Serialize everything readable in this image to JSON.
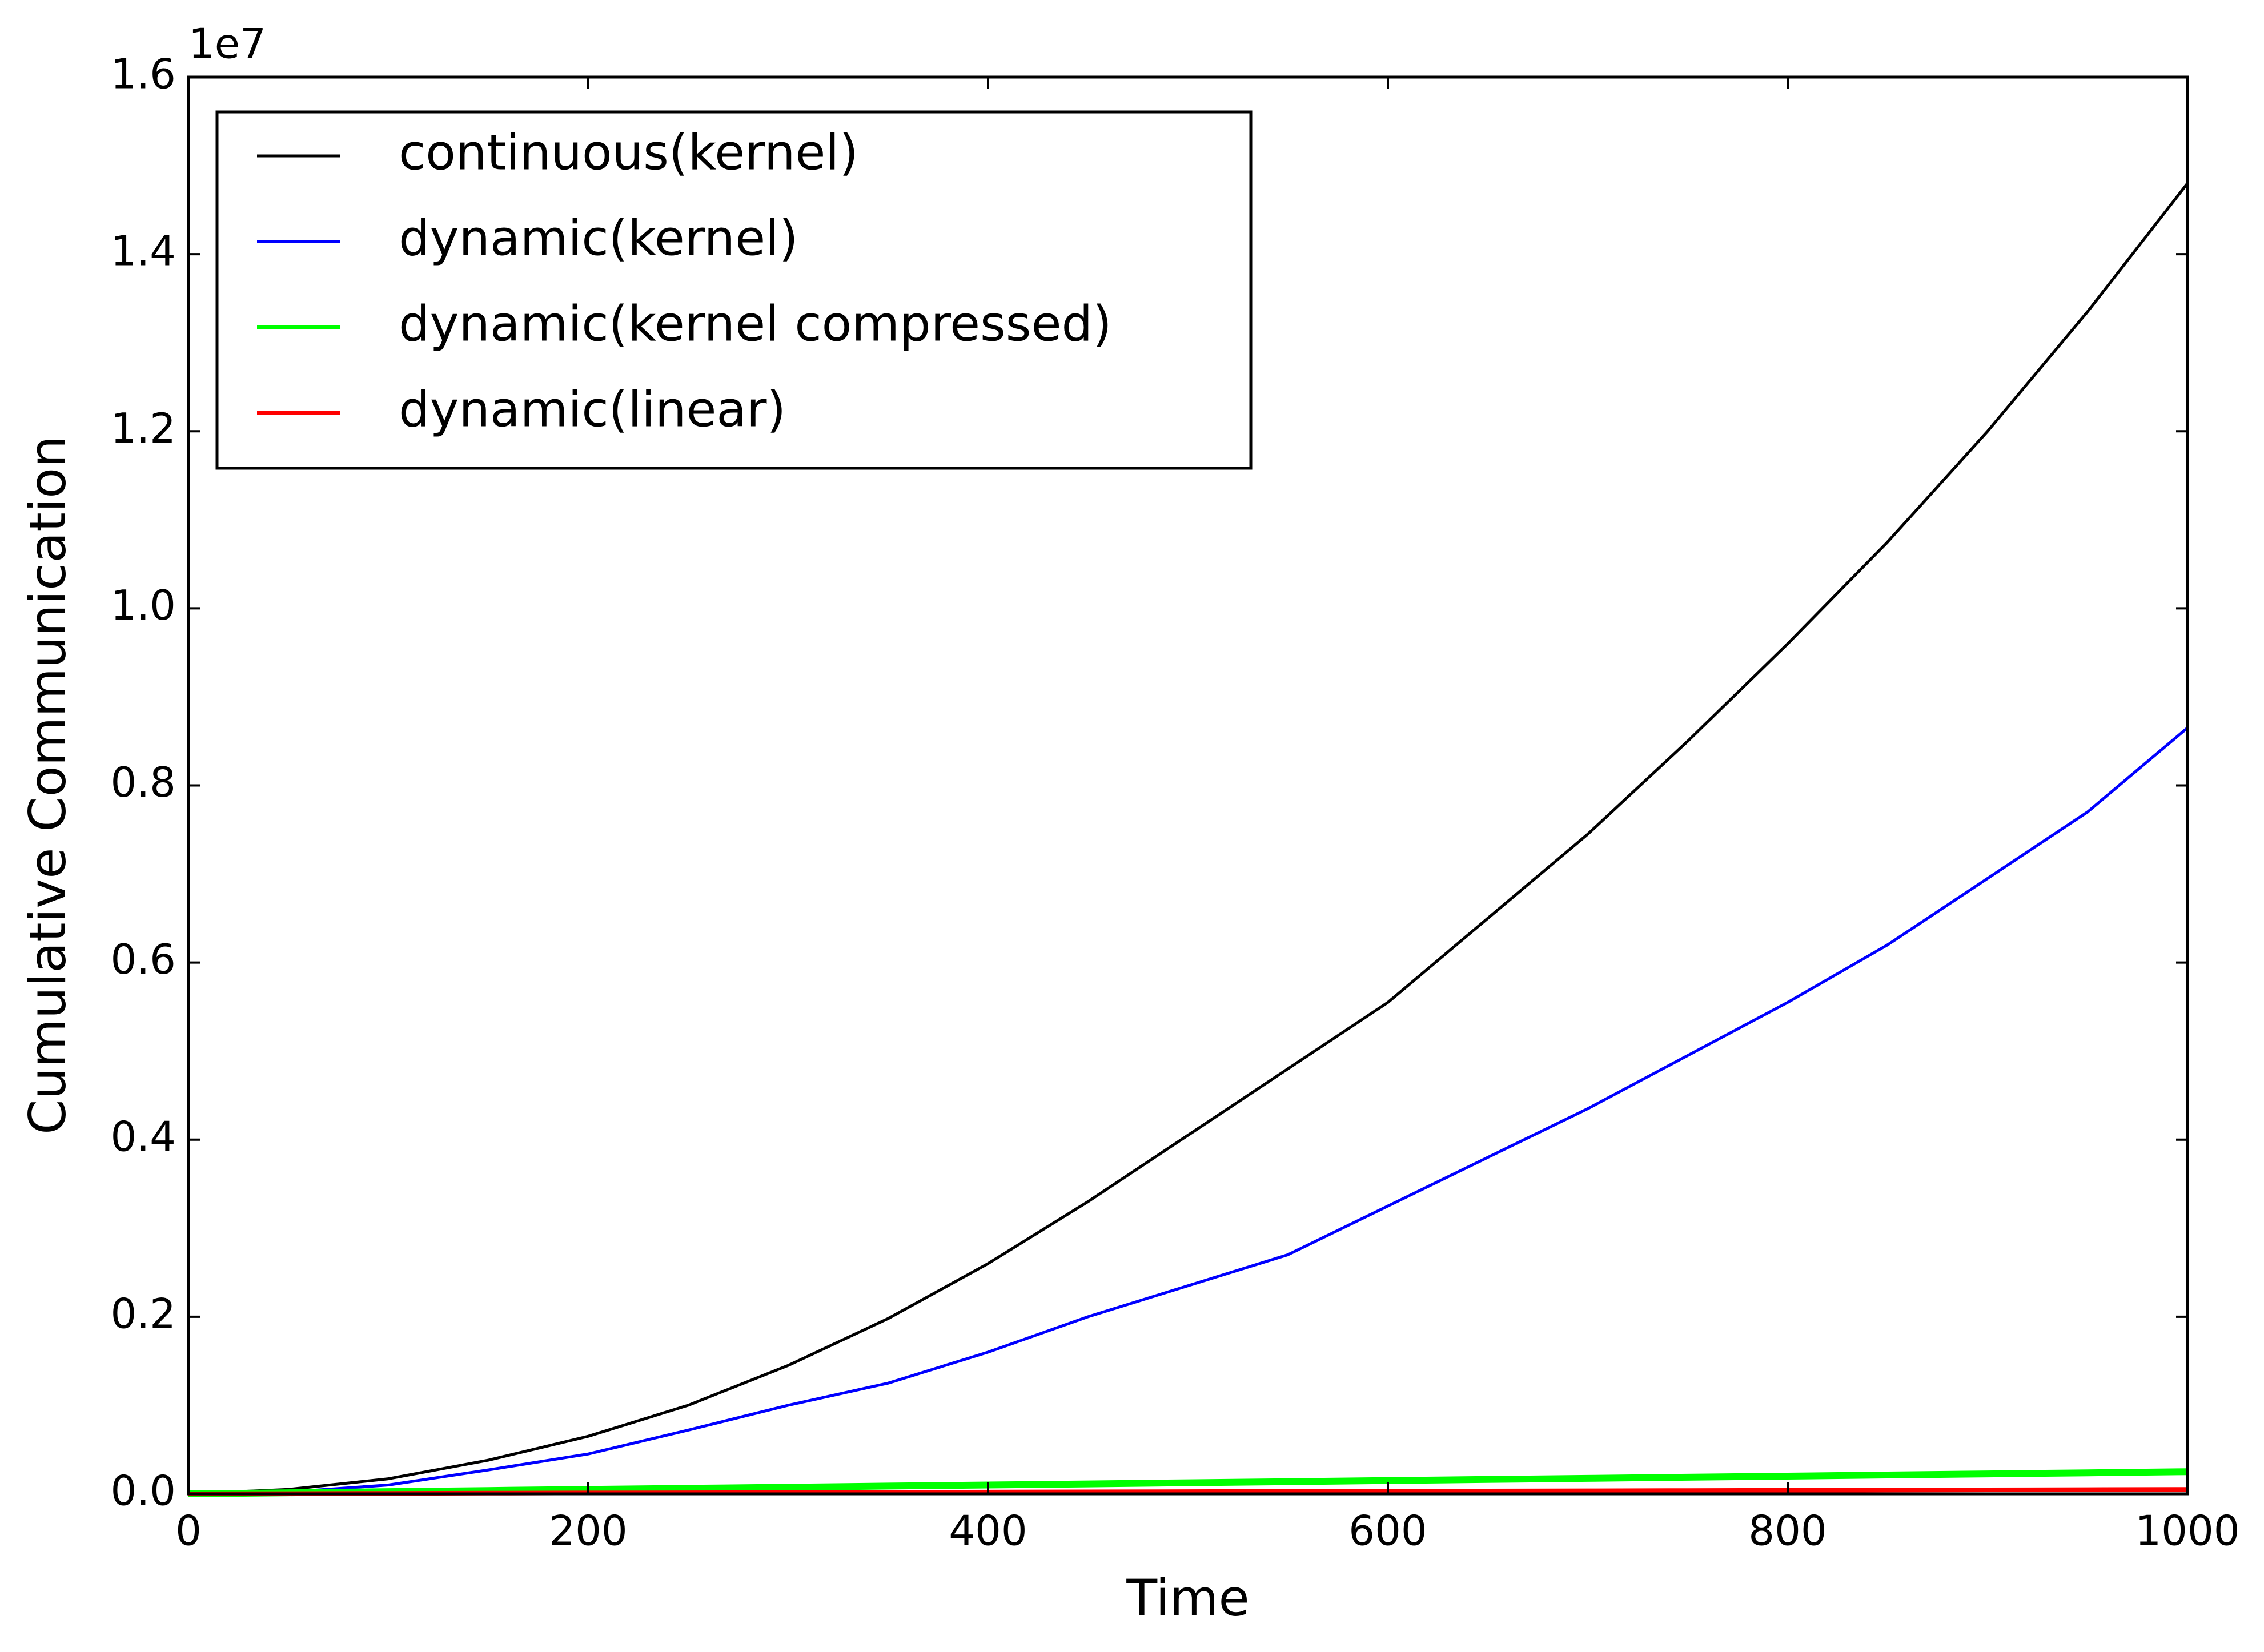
{
  "chart_data": {
    "type": "line",
    "x_label": "Time",
    "y_label": "Cumulative Communication",
    "offset_label": "1e7",
    "x": [
      0,
      50,
      100,
      150,
      200,
      250,
      300,
      350,
      400,
      450,
      500,
      550,
      600,
      650,
      700,
      750,
      800,
      850,
      900,
      950,
      1000
    ],
    "series": [
      {
        "name": "continuous(kernel)",
        "color": "#000000",
        "width": 5,
        "values": [
          0,
          50000,
          170000,
          380000,
          650000,
          1000000,
          1450000,
          1980000,
          2600000,
          3300000,
          4050000,
          4800000,
          5550000,
          6500000,
          7450000,
          8500000,
          9600000,
          10750000,
          12000000,
          13350000,
          14800000
        ]
      },
      {
        "name": "dynamic(kernel)",
        "color": "#0000ff",
        "width": 5,
        "values": [
          0,
          20000,
          100000,
          270000,
          450000,
          720000,
          1000000,
          1250000,
          1600000,
          2000000,
          2350000,
          2700000,
          3250000,
          3800000,
          4350000,
          4950000,
          5550000,
          6200000,
          6950000,
          7700000,
          8650000
        ]
      },
      {
        "name": "dynamic(kernel compressed)",
        "color": "#00ff00",
        "width": 12,
        "values": [
          0,
          12500,
          25000,
          37500,
          50000,
          62500,
          75000,
          87500,
          100000,
          112500,
          125000,
          137500,
          150000,
          162500,
          175000,
          187500,
          200000,
          212500,
          225000,
          237500,
          250000
        ]
      },
      {
        "name": "dynamic(linear)",
        "color": "#ff0000",
        "width": 8,
        "values": [
          0,
          2500,
          5000,
          7500,
          10000,
          12500,
          15000,
          17500,
          20000,
          22500,
          25000,
          27500,
          30000,
          32500,
          35000,
          37500,
          40000,
          42500,
          45000,
          47500,
          50000
        ]
      }
    ],
    "xlim": [
      0,
      1000
    ],
    "xticks": [
      0,
      200,
      400,
      600,
      800,
      1000
    ],
    "ylim": [
      0,
      16000000
    ],
    "yticks": [
      {
        "value": 0,
        "label": "0.0"
      },
      {
        "value": 2000000,
        "label": "0.2"
      },
      {
        "value": 4000000,
        "label": "0.4"
      },
      {
        "value": 6000000,
        "label": "0.6"
      },
      {
        "value": 8000000,
        "label": "0.8"
      },
      {
        "value": 10000000,
        "label": "1.0"
      },
      {
        "value": 12000000,
        "label": "1.2"
      },
      {
        "value": 14000000,
        "label": "1.4"
      },
      {
        "value": 16000000,
        "label": "1.6"
      }
    ],
    "legend": "upper left",
    "grid": false
  }
}
